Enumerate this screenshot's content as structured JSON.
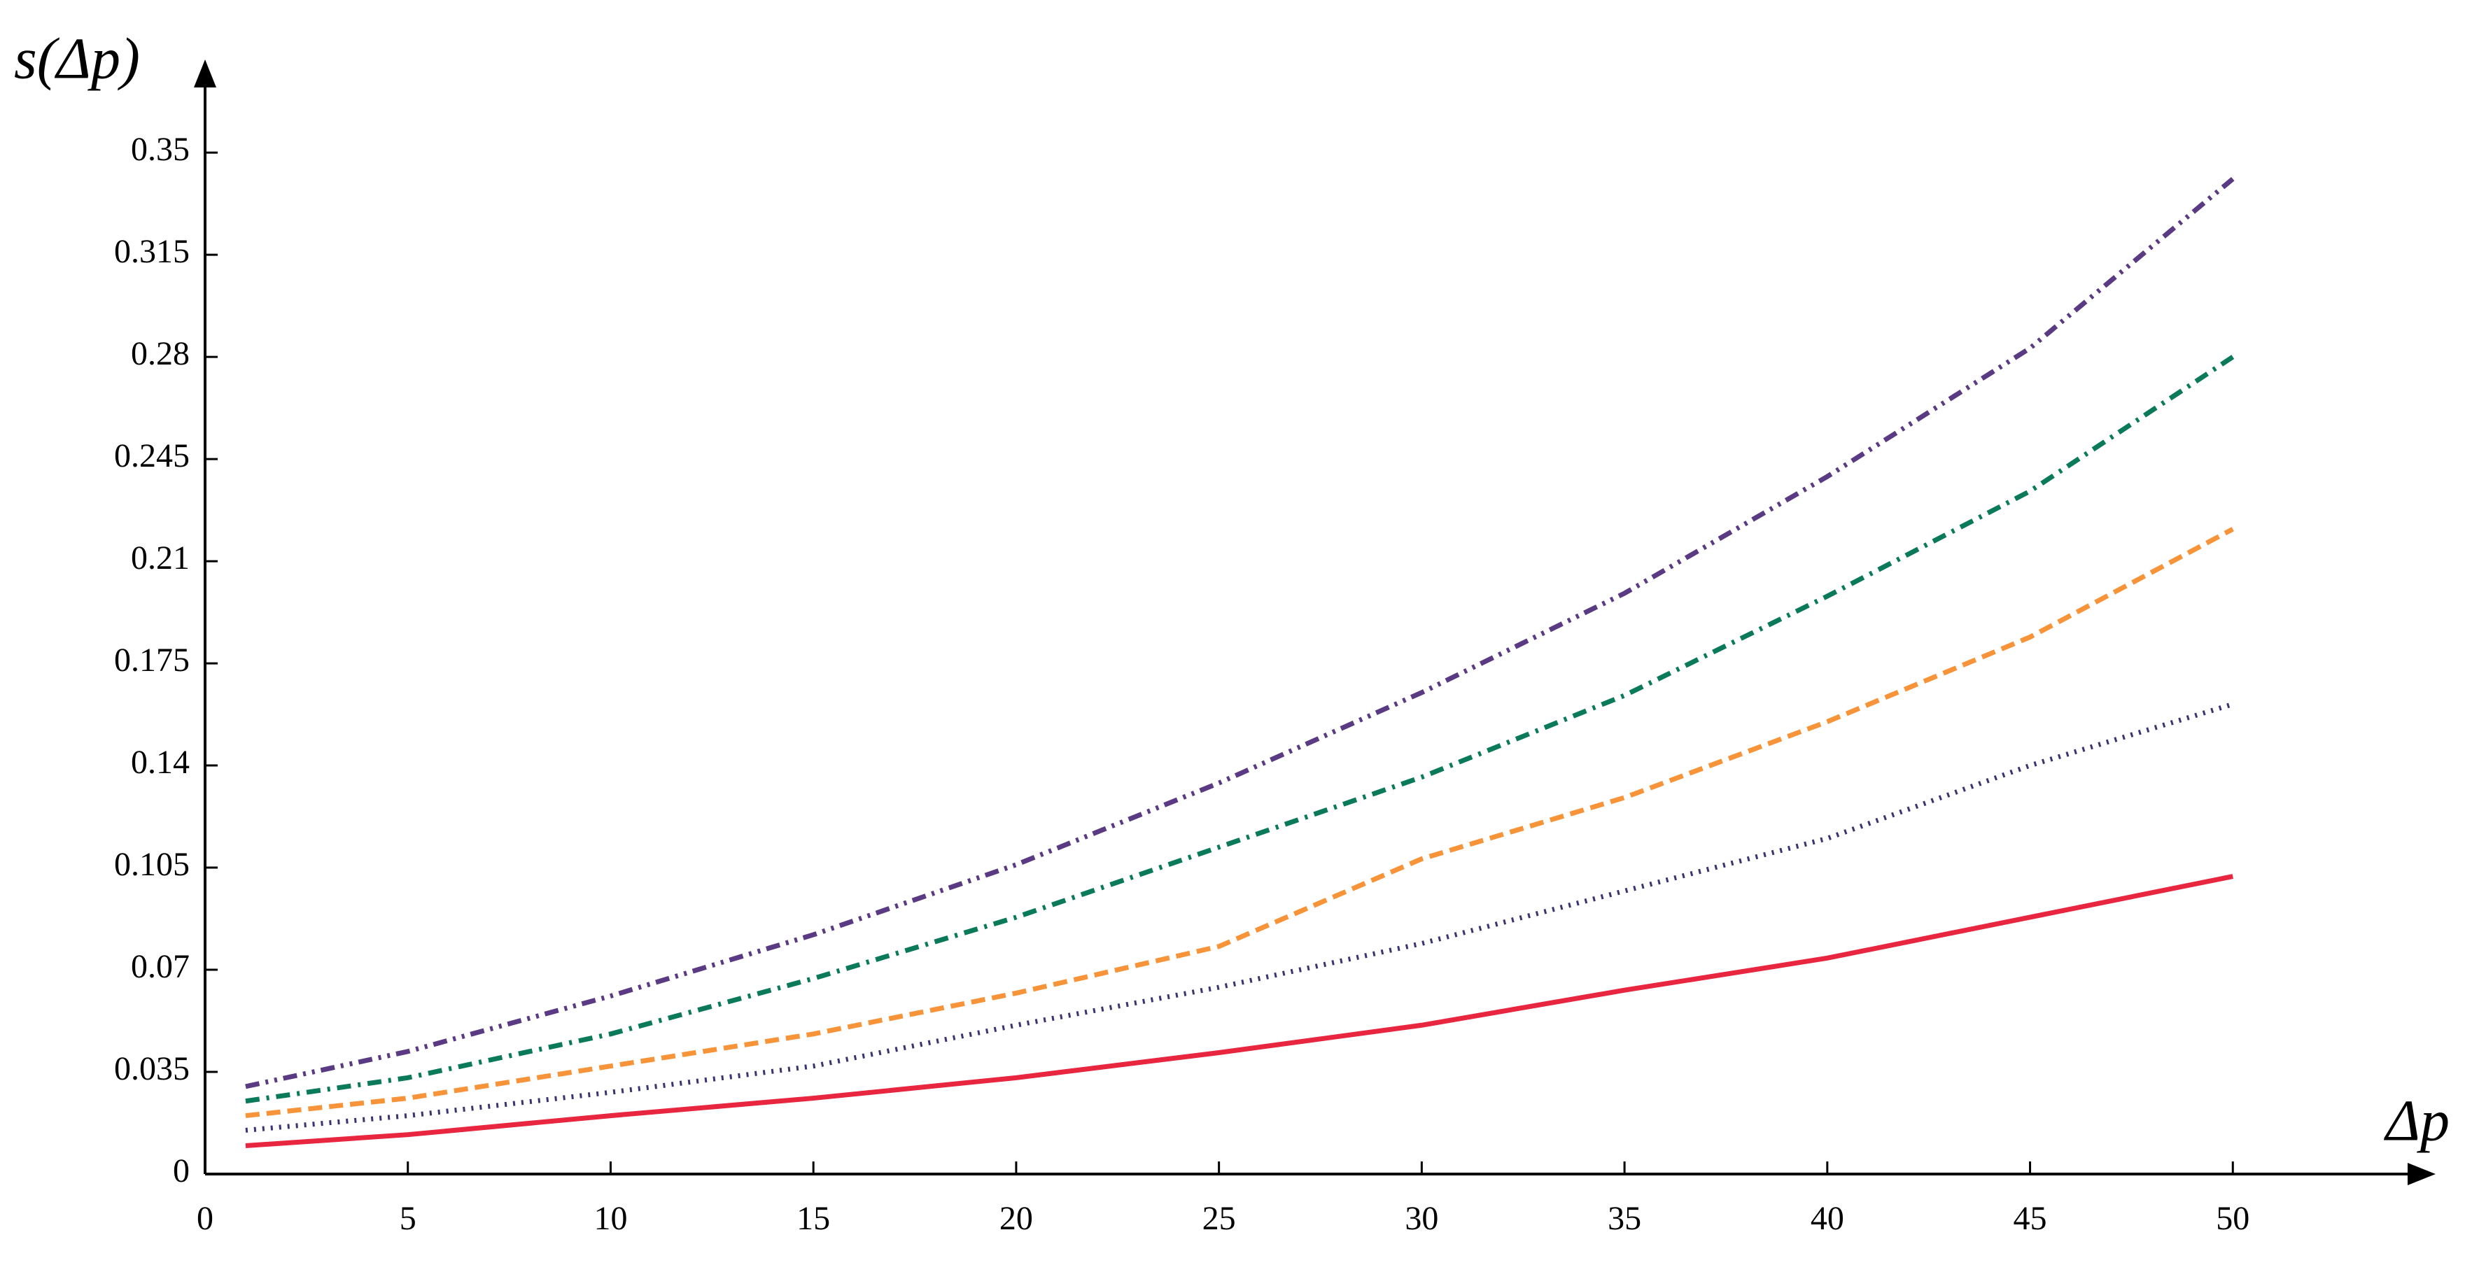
{
  "chart_data": {
    "type": "line",
    "y_label": "s(Δp)",
    "x_label": "Δp",
    "x": [
      1,
      5,
      10,
      15,
      20,
      25,
      30,
      35,
      40,
      45,
      50
    ],
    "series": [
      {
        "color": "#e8263f",
        "dash": "solid",
        "values": [
          0.0097,
          0.0135,
          0.02,
          0.026,
          0.033,
          0.0416,
          0.051,
          0.063,
          0.074,
          0.088,
          0.102
        ]
      },
      {
        "color": "#3a3470",
        "dash": "dotted",
        "values": [
          0.015,
          0.02,
          0.028,
          0.037,
          0.051,
          0.064,
          0.079,
          0.097,
          0.115,
          0.14,
          0.161
        ]
      },
      {
        "color": "#f7943a",
        "dash": "dashed",
        "values": [
          0.02,
          0.026,
          0.037,
          0.048,
          0.062,
          0.078,
          0.108,
          0.129,
          0.155,
          0.184,
          0.221
        ]
      },
      {
        "color": "#0b7a5a",
        "dash": "dashdot",
        "values": [
          0.025,
          0.033,
          0.048,
          0.067,
          0.088,
          0.112,
          0.136,
          0.164,
          0.198,
          0.234,
          0.28
        ]
      },
      {
        "color": "#5a3a82",
        "dash": "dashdotdot",
        "values": [
          0.03,
          0.042,
          0.061,
          0.082,
          0.106,
          0.134,
          0.165,
          0.199,
          0.239,
          0.283,
          0.341
        ]
      }
    ],
    "xlim": [
      0,
      55
    ],
    "ylim": [
      0,
      0.38
    ],
    "xticks": [
      0,
      5,
      10,
      15,
      20,
      25,
      30,
      35,
      40,
      45,
      50
    ],
    "yticks": [
      0,
      0.035,
      0.07,
      0.105,
      0.14,
      0.175,
      0.21,
      0.245,
      0.28,
      0.315,
      0.35
    ]
  }
}
